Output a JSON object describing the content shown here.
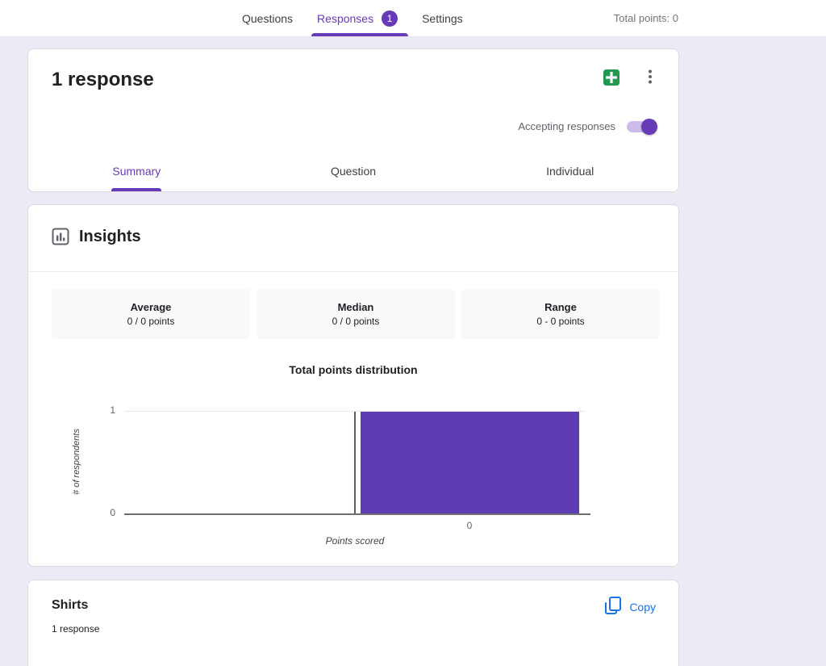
{
  "topbar": {
    "tabs": [
      {
        "label": "Questions",
        "active": false
      },
      {
        "label": "Responses",
        "active": true,
        "badge": "1"
      },
      {
        "label": "Settings",
        "active": false
      }
    ],
    "total_points": "Total points: 0"
  },
  "response_card": {
    "title": "1 response",
    "accepting_toggle": {
      "label": "Accepting responses",
      "state": "on"
    },
    "tabs": [
      {
        "label": "Summary",
        "active": true
      },
      {
        "label": "Question",
        "active": false
      },
      {
        "label": "Individual",
        "active": false
      }
    ]
  },
  "insights": {
    "title": "Insights",
    "stats": [
      {
        "label": "Average",
        "value": "0 / 0 points"
      },
      {
        "label": "Median",
        "value": "0 / 0 points"
      },
      {
        "label": "Range",
        "value": "0 - 0 points"
      }
    ],
    "chart_data": {
      "type": "bar",
      "title": "Total points distribution",
      "xlabel": "Points scored",
      "ylabel": "# of respondents",
      "categories": [
        "0"
      ],
      "values": [
        1
      ],
      "ylim": [
        0,
        1
      ],
      "yticks": [
        "0",
        "1"
      ],
      "grid": "top gridline only",
      "legend": false
    }
  },
  "question_card": {
    "title": "Shirts",
    "subtitle": "1 response",
    "copy_label": "Copy"
  },
  "icons": {
    "sheets-icon": "green square with white plus (link to Sheets)",
    "more-vert-icon": "three vertical dots",
    "insights-icon": "outlined square with bar chart",
    "copy-icon": "two overlapping pages"
  },
  "colors": {
    "accent_purple": "#673ab7",
    "bar_purple": "#5e3cb3",
    "link_blue": "#1a73e8",
    "sheets_green": "#23994f",
    "page_background": "#edeaf6"
  }
}
